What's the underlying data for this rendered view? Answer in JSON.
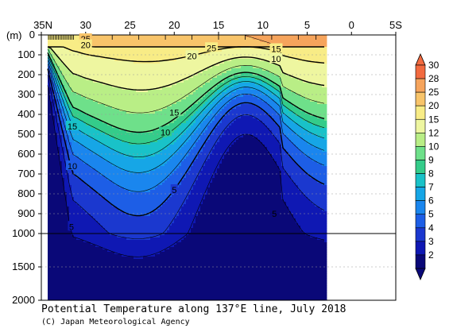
{
  "chart_data": {
    "type": "heatmap",
    "title": "Potential Temperature along 137°E line, July 2018",
    "credit": "(C) Japan Meteorological Agency",
    "y_unit_label": "(m)",
    "x_axis_ticks": [
      "35N",
      "30",
      "25",
      "20",
      "15",
      "10",
      "5",
      "0",
      "5S"
    ],
    "x_axis_values": [
      35,
      30,
      25,
      20,
      15,
      10,
      5,
      0,
      -5
    ],
    "y_axis_ticks": [
      "0",
      "100",
      "200",
      "300",
      "400",
      "500",
      "600",
      "700",
      "800",
      "900",
      "1000",
      "1500",
      "2000"
    ],
    "y_axis_values": [
      0,
      100,
      200,
      300,
      400,
      500,
      600,
      700,
      800,
      900,
      1000,
      1500,
      2000
    ],
    "y_scale_break_m": 1000,
    "colorbar": {
      "levels": [
        "30",
        "28",
        "25",
        "20",
        "15",
        "12",
        "10",
        "9",
        "8",
        "7",
        "6",
        "5",
        "4",
        "3",
        "2"
      ],
      "colors": [
        "#f26a3f",
        "#f6a45c",
        "#f8c46a",
        "#f8ec86",
        "#eef6a0",
        "#b9ee86",
        "#6ee08a",
        "#34cc8a",
        "#19c2c8",
        "#16a6e6",
        "#1a86ee",
        "#1d5ee6",
        "#1b38cf",
        "#0f18b3",
        "#0a0878"
      ]
    },
    "contour_labels": [
      {
        "text": "25",
        "lat": 30.0,
        "depth": 20
      },
      {
        "text": "20",
        "lat": 30.0,
        "depth": 50
      },
      {
        "text": "25",
        "lat": 15.8,
        "depth": 65
      },
      {
        "text": "15",
        "lat": 8.5,
        "depth": 70
      },
      {
        "text": "20",
        "lat": 18.0,
        "depth": 105
      },
      {
        "text": "10",
        "lat": 8.5,
        "depth": 120
      },
      {
        "text": "15",
        "lat": 20.0,
        "depth": 390
      },
      {
        "text": "15",
        "lat": 31.5,
        "depth": 460
      },
      {
        "text": "10",
        "lat": 21.0,
        "depth": 490
      },
      {
        "text": "10",
        "lat": 31.5,
        "depth": 660
      },
      {
        "text": "5",
        "lat": 20.0,
        "depth": 780
      },
      {
        "text": "5",
        "lat": 8.7,
        "depth": 900
      },
      {
        "text": "5",
        "lat": 31.6,
        "depth": 965
      }
    ],
    "section_end_lat": 3.0,
    "grid": "dotted",
    "colorbar_position": "right"
  }
}
